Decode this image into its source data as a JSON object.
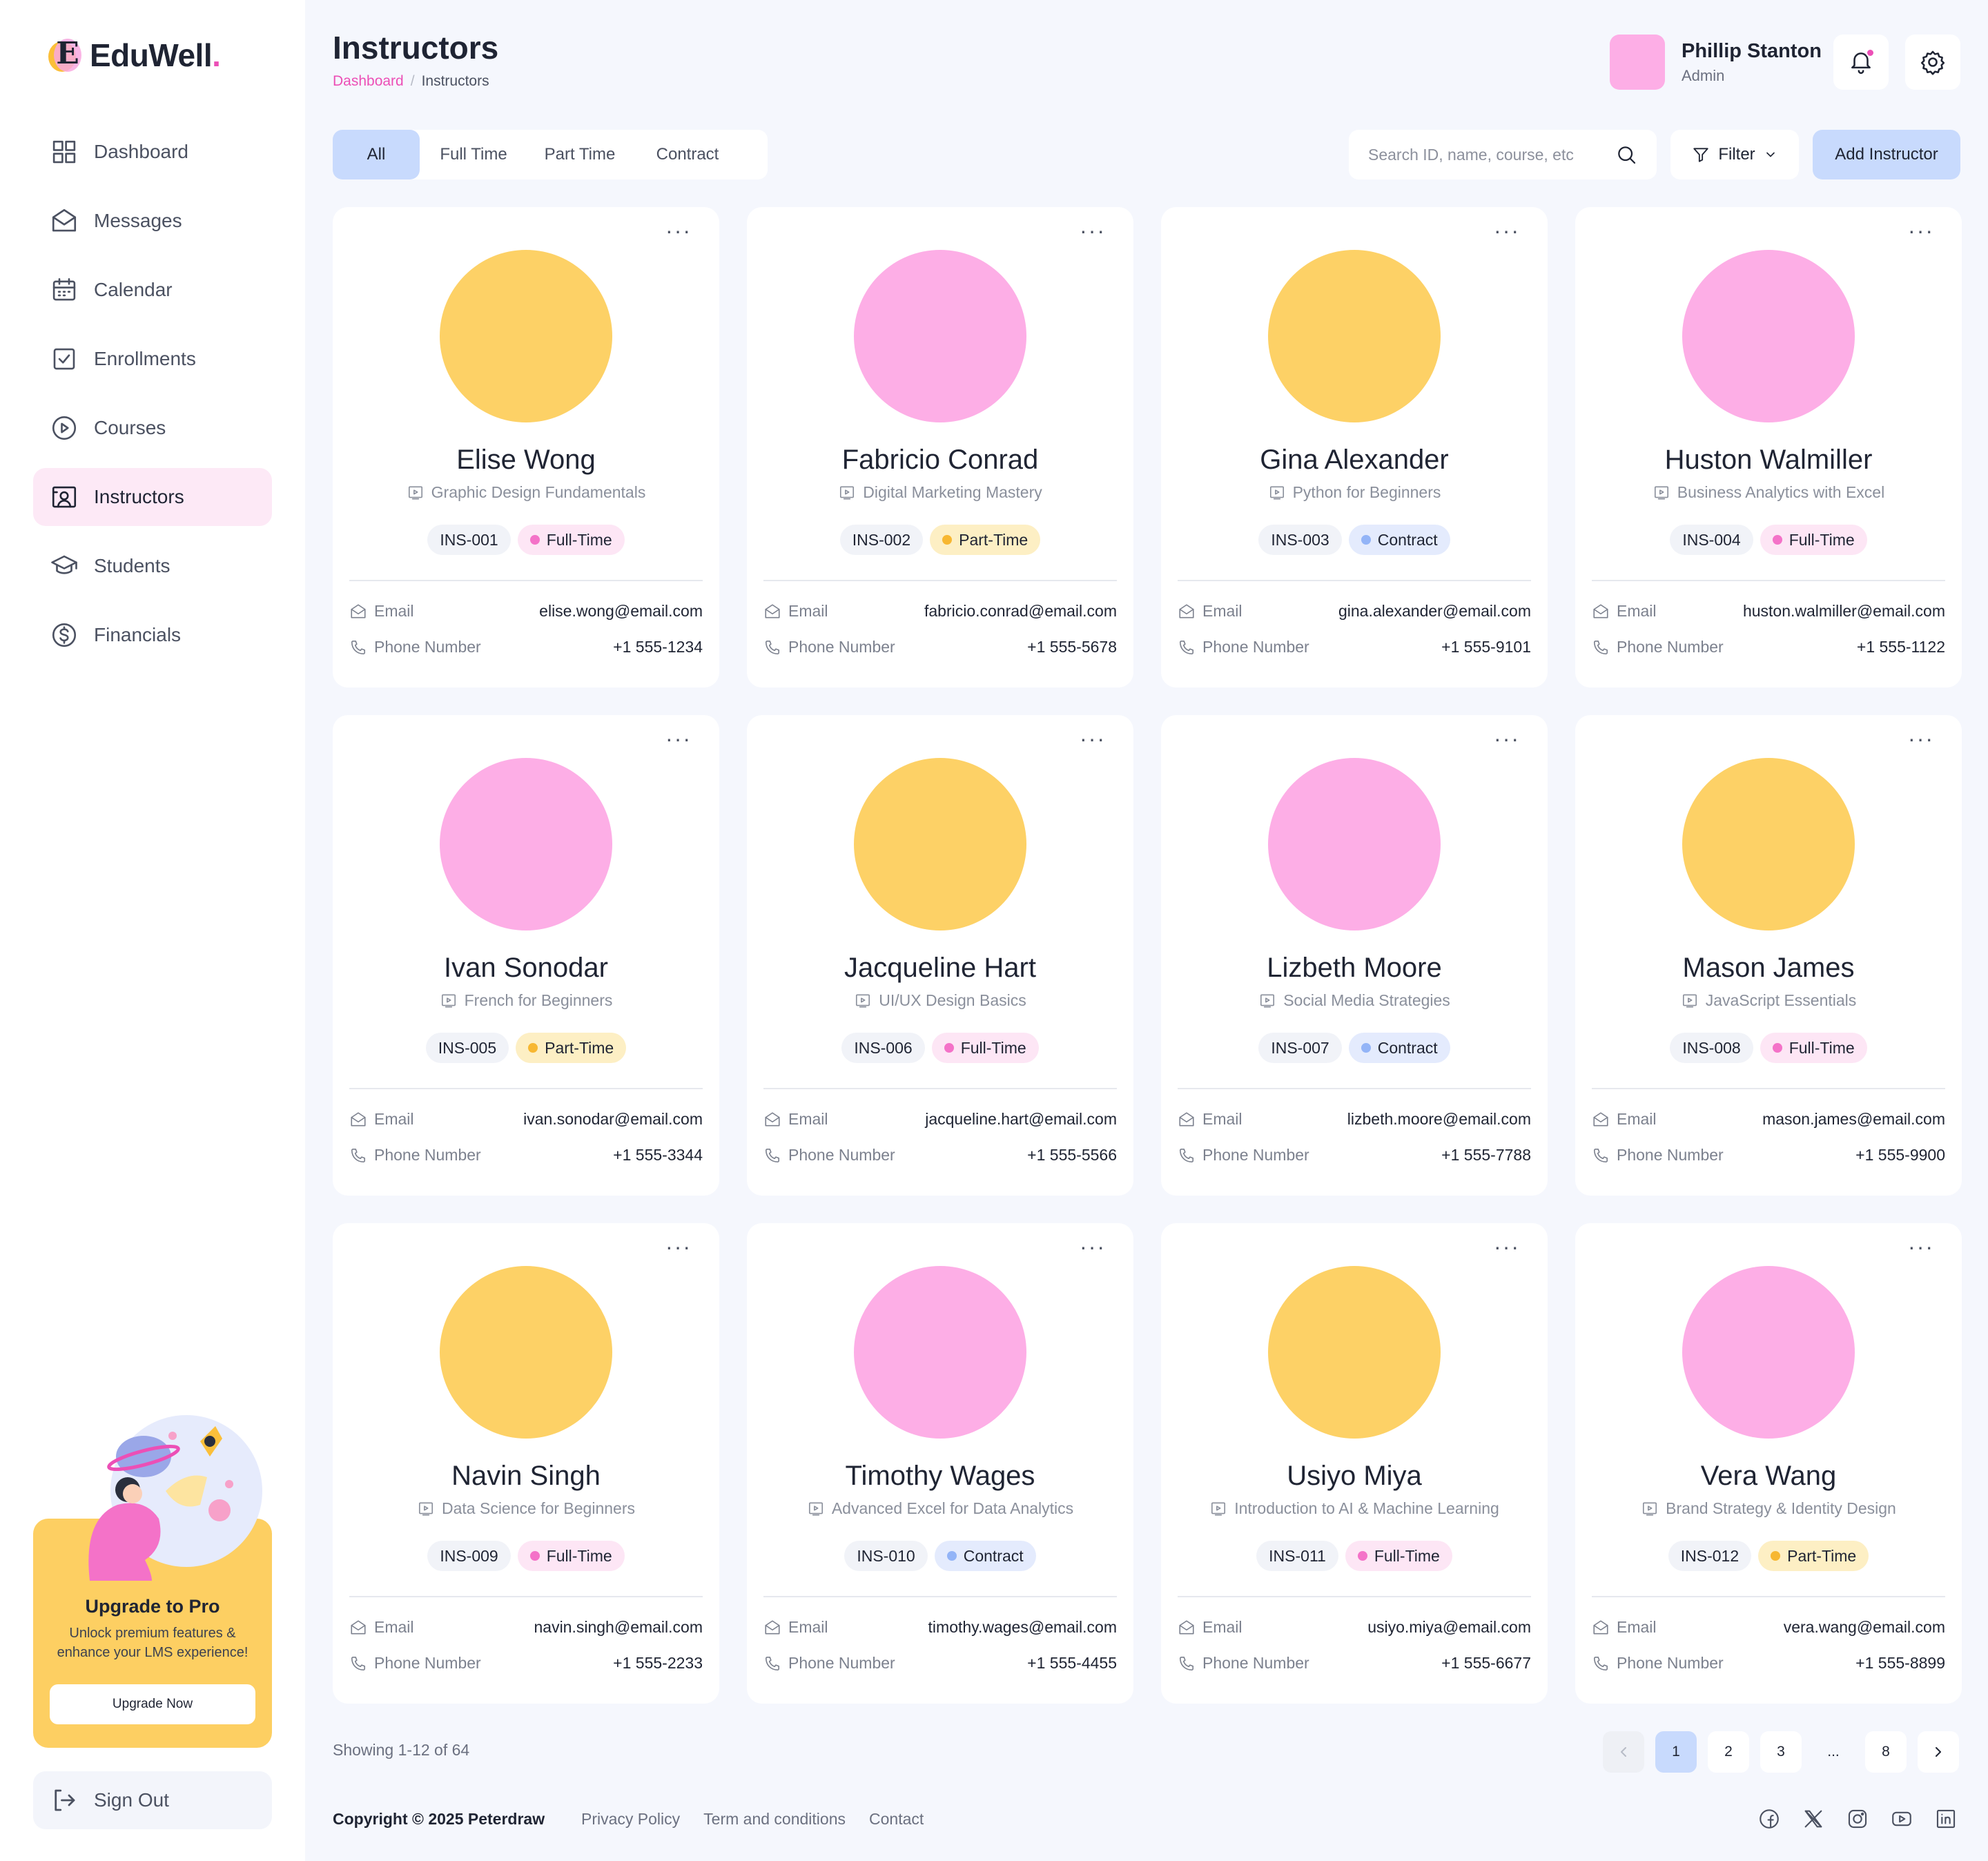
{
  "brand": {
    "name": "EduWell",
    "dot": ".",
    "initial": "E"
  },
  "nav": [
    {
      "label": "Dashboard",
      "icon": "grid-icon",
      "active": false
    },
    {
      "label": "Messages",
      "icon": "mail-icon",
      "active": false
    },
    {
      "label": "Calendar",
      "icon": "calendar-icon",
      "active": false
    },
    {
      "label": "Enrollments",
      "icon": "checkbox-icon",
      "active": false
    },
    {
      "label": "Courses",
      "icon": "play-circle-icon",
      "active": false
    },
    {
      "label": "Instructors",
      "icon": "instructor-board-icon",
      "active": true
    },
    {
      "label": "Students",
      "icon": "graduation-cap-icon",
      "active": false
    },
    {
      "label": "Financials",
      "icon": "dollar-circle-icon",
      "active": false
    }
  ],
  "promo": {
    "title": "Upgrade to Pro",
    "subtitle": "Unlock premium features & enhance your LMS experience!",
    "button": "Upgrade Now"
  },
  "signout": "Sign Out",
  "header": {
    "title": "Instructors",
    "breadcrumb": [
      "Dashboard",
      "Instructors"
    ],
    "separator": "/"
  },
  "user": {
    "name": "Phillip Stanton",
    "role": "Admin"
  },
  "tabs": [
    {
      "label": "All",
      "active": true
    },
    {
      "label": "Full Time",
      "active": false
    },
    {
      "label": "Part Time",
      "active": false
    },
    {
      "label": "Contract",
      "active": false
    }
  ],
  "search": {
    "placeholder": "Search ID, name, course, etc"
  },
  "filter_label": "Filter",
  "add_label": "Add Instructor",
  "labels": {
    "email": "Email",
    "phone": "Phone Number"
  },
  "status_colors": {
    "Full-Time": {
      "bg": "#fde6f5",
      "dot": "#f472c8"
    },
    "Part-Time": {
      "bg": "#fdefc4",
      "dot": "#f7b731"
    },
    "Contract": {
      "bg": "#e4ebfd",
      "dot": "#93b4f7"
    }
  },
  "avatar_colors": {
    "yellow": "#fdd166",
    "pink": "#fdaee6"
  },
  "instructors": [
    {
      "name": "Elise Wong",
      "course": "Graphic Design Fundamentals",
      "id": "INS-001",
      "status": "Full-Time",
      "email": "elise.wong@email.com",
      "phone": "+1 555-1234",
      "avatar": "yellow"
    },
    {
      "name": "Fabricio Conrad",
      "course": "Digital Marketing Mastery",
      "id": "INS-002",
      "status": "Part-Time",
      "email": "fabricio.conrad@email.com",
      "phone": "+1 555-5678",
      "avatar": "pink"
    },
    {
      "name": "Gina Alexander",
      "course": "Python for Beginners",
      "id": "INS-003",
      "status": "Contract",
      "email": "gina.alexander@email.com",
      "phone": "+1 555-9101",
      "avatar": "yellow"
    },
    {
      "name": "Huston Walmiller",
      "course": "Business Analytics with Excel",
      "id": "INS-004",
      "status": "Full-Time",
      "email": "huston.walmiller@email.com",
      "phone": "+1 555-1122",
      "avatar": "pink"
    },
    {
      "name": "Ivan Sonodar",
      "course": "French for Beginners",
      "id": "INS-005",
      "status": "Part-Time",
      "email": "ivan.sonodar@email.com",
      "phone": "+1 555-3344",
      "avatar": "pink"
    },
    {
      "name": "Jacqueline Hart",
      "course": "UI/UX Design Basics",
      "id": "INS-006",
      "status": "Full-Time",
      "email": "jacqueline.hart@email.com",
      "phone": "+1 555-5566",
      "avatar": "yellow"
    },
    {
      "name": "Lizbeth Moore",
      "course": "Social Media Strategies",
      "id": "INS-007",
      "status": "Contract",
      "email": "lizbeth.moore@email.com",
      "phone": "+1 555-7788",
      "avatar": "pink"
    },
    {
      "name": "Mason James",
      "course": "JavaScript Essentials",
      "id": "INS-008",
      "status": "Full-Time",
      "email": "mason.james@email.com",
      "phone": "+1 555-9900",
      "avatar": "yellow"
    },
    {
      "name": "Navin Singh",
      "course": "Data Science for Beginners",
      "id": "INS-009",
      "status": "Full-Time",
      "email": "navin.singh@email.com",
      "phone": "+1 555-2233",
      "avatar": "yellow"
    },
    {
      "name": "Timothy Wages",
      "course": "Advanced Excel for Data Analytics",
      "id": "INS-010",
      "status": "Contract",
      "email": "timothy.wages@email.com",
      "phone": "+1 555-4455",
      "avatar": "pink"
    },
    {
      "name": "Usiyo Miya",
      "course": "Introduction to AI & Machine Learning",
      "id": "INS-011",
      "status": "Full-Time",
      "email": "usiyo.miya@email.com",
      "phone": "+1 555-6677",
      "avatar": "yellow"
    },
    {
      "name": "Vera Wang",
      "course": "Brand Strategy & Identity Design",
      "id": "INS-012",
      "status": "Part-Time",
      "email": "vera.wang@email.com",
      "phone": "+1 555-8899",
      "avatar": "pink"
    }
  ],
  "pagination": {
    "showing": "Showing 1-12 of 64",
    "pages": [
      "1",
      "2",
      "3",
      "...",
      "8"
    ],
    "current": "1"
  },
  "footer": {
    "copyright": "Copyright © 2025 Peterdraw",
    "links": [
      "Privacy Policy",
      "Term and conditions",
      "Contact"
    ],
    "socials": [
      "facebook-icon",
      "x-icon",
      "instagram-icon",
      "youtube-icon",
      "linkedin-icon"
    ]
  }
}
